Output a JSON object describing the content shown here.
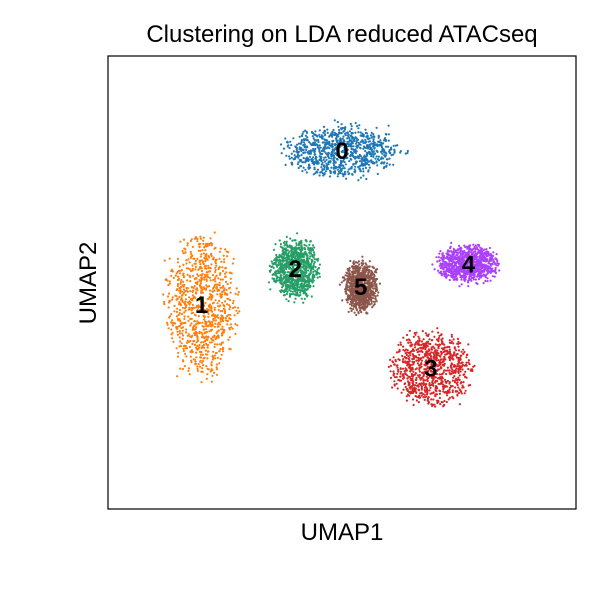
{
  "chart_data": {
    "type": "scatter",
    "title": "Clustering on LDA reduced ATACseq",
    "xlabel": "UMAP1",
    "ylabel": "UMAP2",
    "xlim": [
      0,
      10
    ],
    "ylim": [
      0,
      10
    ],
    "grid": false,
    "legend": "on data",
    "series": [
      {
        "name": "0",
        "color": "#1f77b4",
        "center": [
          5.0,
          7.9
        ],
        "spread": [
          2.3,
          1.0
        ]
      },
      {
        "name": "1",
        "color": "#ff7f0e",
        "center": [
          2.0,
          4.5
        ],
        "spread": [
          1.4,
          2.9
        ]
      },
      {
        "name": "2",
        "color": "#279e68",
        "center": [
          4.0,
          5.3
        ],
        "spread": [
          0.9,
          1.2
        ]
      },
      {
        "name": "3",
        "color": "#d62728",
        "center": [
          6.9,
          3.1
        ],
        "spread": [
          1.6,
          1.5
        ]
      },
      {
        "name": "4",
        "color": "#aa40fc",
        "center": [
          7.7,
          5.4
        ],
        "spread": [
          1.2,
          0.7
        ]
      },
      {
        "name": "5",
        "color": "#8c564b",
        "center": [
          5.4,
          4.9
        ],
        "spread": [
          0.6,
          1.0
        ]
      }
    ]
  }
}
